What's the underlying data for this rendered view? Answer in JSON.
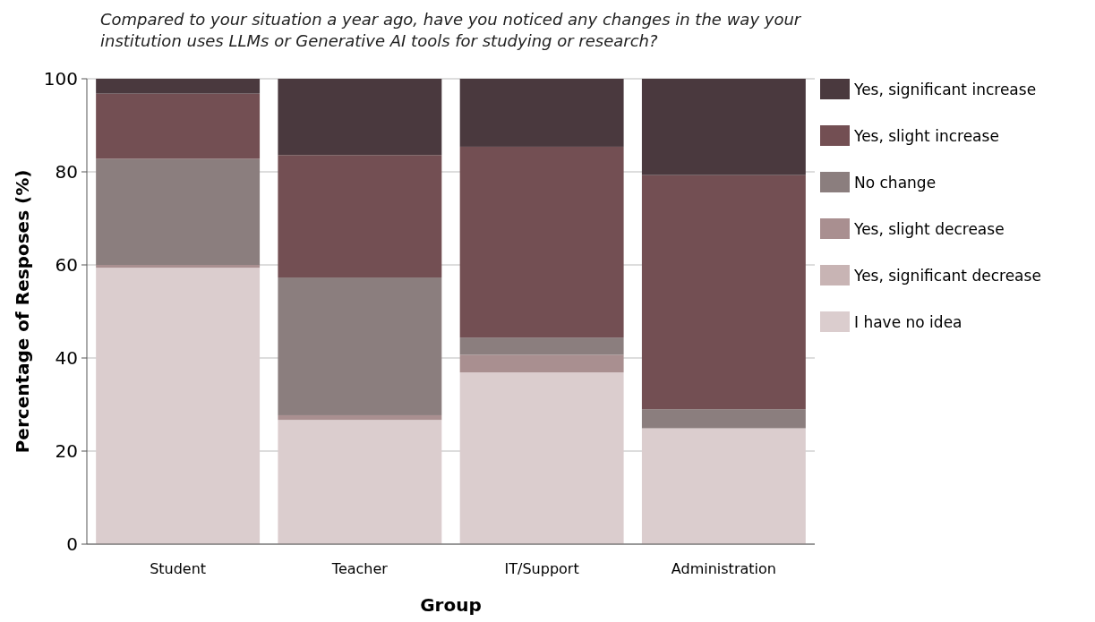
{
  "chart_data": {
    "type": "bar",
    "stacked": true,
    "title": "Compared to your situation a year ago, have you noticed any changes in the way your institution uses LLMs or Generative AI tools for studying or research?",
    "xlabel": "Group",
    "ylabel": "Percentage of Resposes (%)",
    "categories": [
      "Student",
      "Teacher",
      "IT/Support",
      "Administration"
    ],
    "series": [
      {
        "name": "I have no idea",
        "color": "#dbcdce",
        "values": [
          59.4,
          26.7,
          36.9,
          24.9
        ]
      },
      {
        "name": "Yes, significant decrease",
        "color": "#c8b4b4",
        "values": [
          0,
          0,
          0,
          0
        ]
      },
      {
        "name": "Yes, slight decrease",
        "color": "#a98f90",
        "values": [
          0.6,
          1.0,
          3.8,
          0
        ]
      },
      {
        "name": "No change",
        "color": "#8b7e7e",
        "values": [
          22.8,
          29.6,
          3.7,
          4.1
        ]
      },
      {
        "name": "Yes, slight increase",
        "color": "#734f53",
        "values": [
          14.0,
          26.3,
          41.0,
          50.3
        ]
      },
      {
        "name": "Yes, significant increase",
        "color": "#4a393e",
        "values": [
          3.2,
          16.4,
          14.6,
          20.7
        ]
      }
    ],
    "ylim": [
      0,
      100
    ],
    "yticks": [
      0,
      20,
      40,
      60,
      80,
      100
    ],
    "grid": "y",
    "legend": "right"
  }
}
